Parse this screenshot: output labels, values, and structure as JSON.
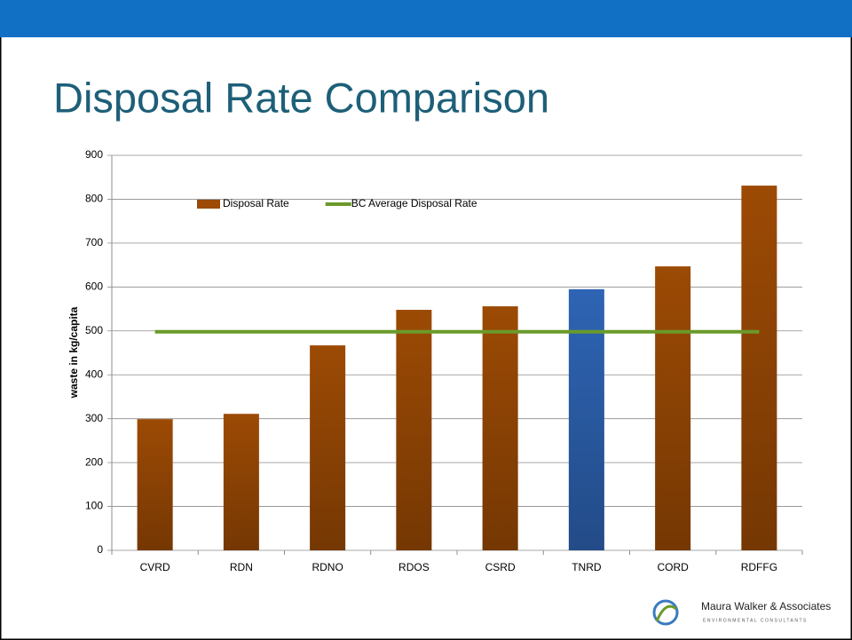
{
  "chart_data": {
    "type": "bar",
    "title": "Disposal Rate Comparison",
    "y_label": "waste in kg/capita",
    "categories": [
      "CVRD",
      "RDN",
      "RDNO",
      "RDOS",
      "CSRD",
      "TNRD",
      "CORD",
      "RDFFG"
    ],
    "series": [
      {
        "name": "Disposal Rate",
        "type": "bar",
        "color": "#9c4a04",
        "colors": [
          "#9c4a04",
          "#9c4a04",
          "#9c4a04",
          "#9c4a04",
          "#9c4a04",
          "#2e64b4",
          "#9c4a04",
          "#9c4a04"
        ],
        "values": [
          299,
          311,
          467,
          548,
          556,
          595,
          647,
          831
        ]
      },
      {
        "name": "BC Average Disposal Rate",
        "type": "line",
        "color": "#6a9a2a",
        "values": [
          498,
          498,
          498,
          498,
          498,
          498,
          498,
          498
        ]
      }
    ],
    "ylim": [
      0,
      900
    ],
    "yticks": [
      0,
      100,
      200,
      300,
      400,
      500,
      600,
      700,
      800,
      900
    ],
    "grid": true,
    "legend": "top"
  },
  "logo": {
    "name": "Maura Walker & Associates",
    "tagline": "ENVIRONMENTAL CONSULTANTS"
  }
}
